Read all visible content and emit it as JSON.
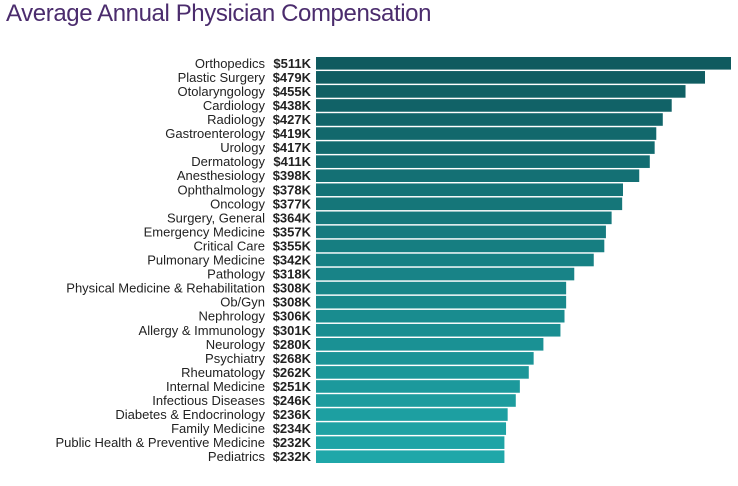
{
  "chart_data": {
    "type": "bar",
    "orientation": "horizontal",
    "title": "Average Annual Physician Compensation",
    "categories": [
      "Orthopedics",
      "Plastic Surgery",
      "Otolaryngology",
      "Cardiology",
      "Radiology",
      "Gastroenterology",
      "Urology",
      "Dermatology",
      "Anesthesiology",
      "Ophthalmology",
      "Oncology",
      "Surgery, General",
      "Emergency Medicine",
      "Critical Care",
      "Pulmonary Medicine",
      "Pathology",
      "Physical Medicine & Rehabilitation",
      "Ob/Gyn",
      "Nephrology",
      "Allergy & Immunology",
      "Neurology",
      "Psychiatry",
      "Rheumatology",
      "Internal Medicine",
      "Infectious Diseases",
      "Diabetes & Endocrinology",
      "Family Medicine",
      "Public Health & Preventive Medicine",
      "Pediatrics"
    ],
    "values": [
      511,
      479,
      455,
      438,
      427,
      419,
      417,
      411,
      398,
      378,
      377,
      364,
      357,
      355,
      342,
      318,
      308,
      308,
      306,
      301,
      280,
      268,
      262,
      251,
      246,
      236,
      234,
      232,
      232
    ],
    "value_labels": [
      "$511K",
      "$479K",
      "$455K",
      "$438K",
      "$427K",
      "$419K",
      "$417K",
      "$411K",
      "$398K",
      "$378K",
      "$377K",
      "$364K",
      "$357K",
      "$355K",
      "$342K",
      "$318K",
      "$308K",
      "$308K",
      "$306K",
      "$301K",
      "$280K",
      "$268K",
      "$262K",
      "$251K",
      "$246K",
      "$236K",
      "$234K",
      "$232K",
      "$232K"
    ],
    "unit": "$K",
    "grid": false,
    "legend": "none",
    "colors": {
      "top": "#0f5a5f",
      "bottom": "#1fa7a9"
    }
  }
}
